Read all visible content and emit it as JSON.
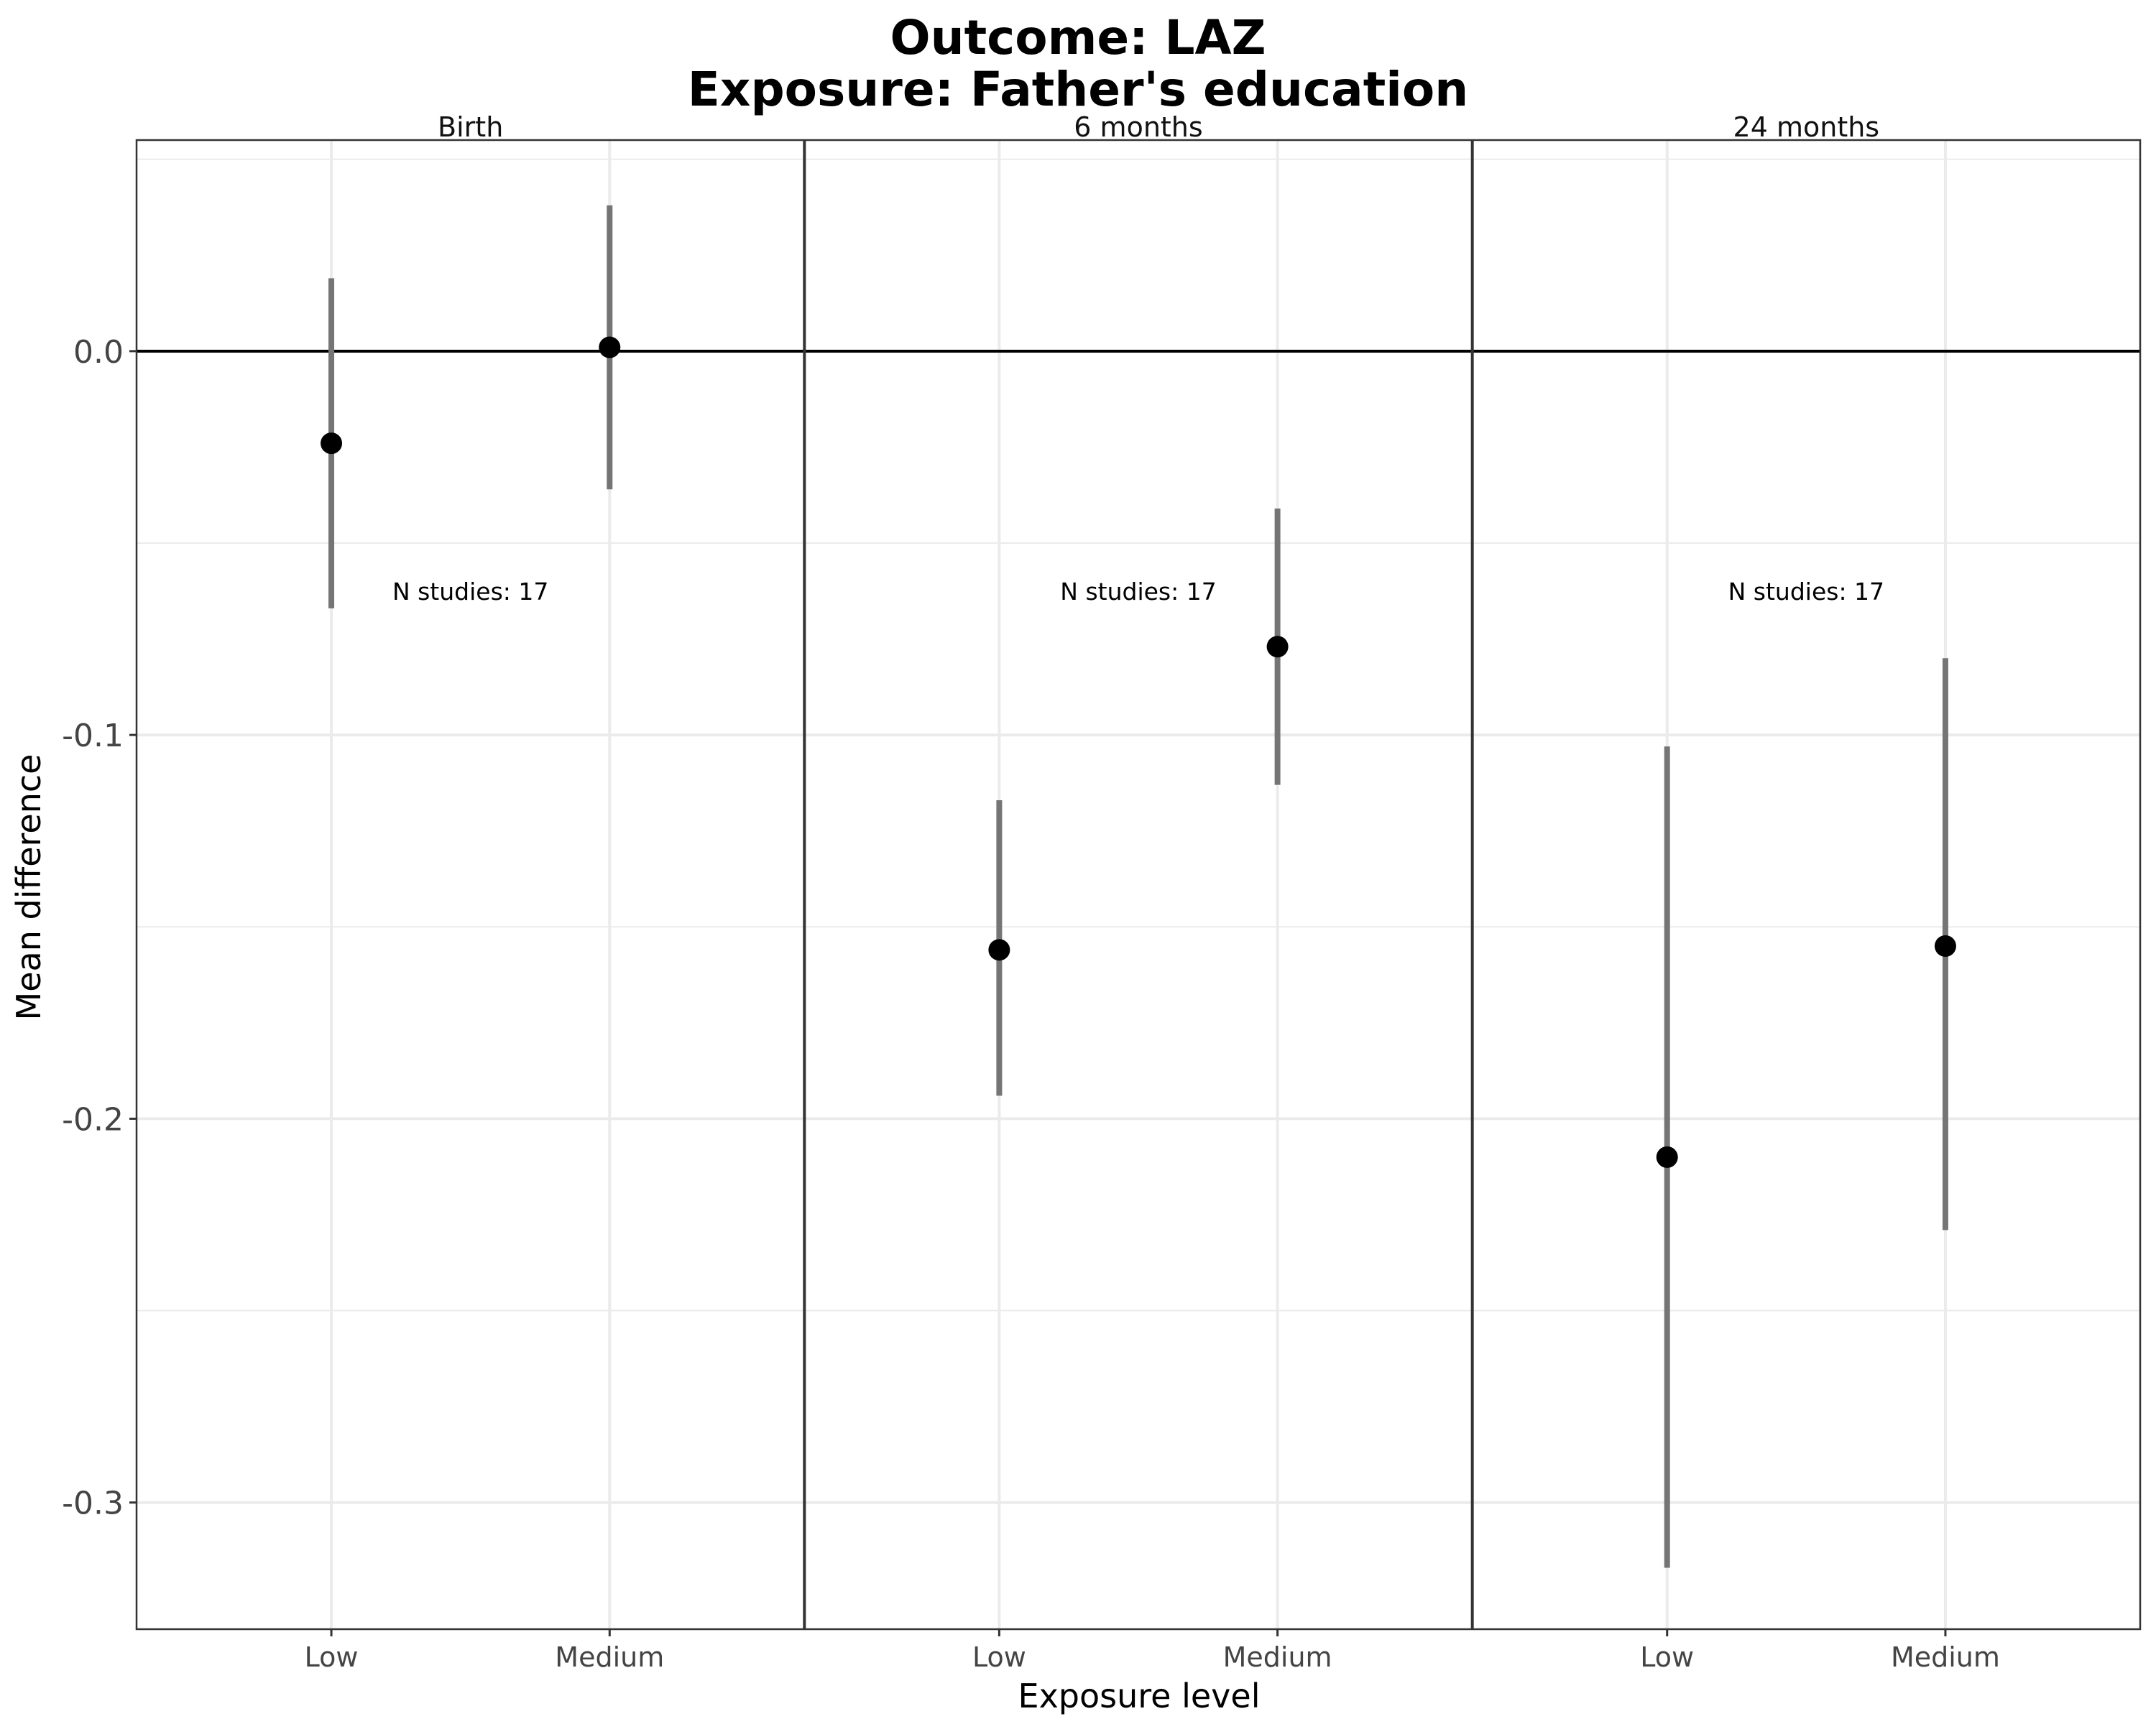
{
  "chart_data": {
    "type": "scatter",
    "subtype": "point-range facets",
    "title": "Outcome: LAZ",
    "subtitle": "Exposure: Father's education",
    "xlabel": "Exposure level",
    "ylabel": "Mean difference",
    "categories": [
      "Low",
      "Medium"
    ],
    "ylim": [
      -0.333,
      0.055
    ],
    "yticks": [
      0.0,
      -0.1,
      -0.2,
      -0.3
    ],
    "ytick_labels": [
      "0.0",
      "-0.1",
      "-0.2",
      "-0.3"
    ],
    "reference_line": 0.0,
    "grid": true,
    "legend": "none",
    "colors": {
      "point": "#000000",
      "interval": "#757575",
      "reference": "#000000",
      "grid": "#ebebeb",
      "border": "#333333"
    },
    "facets": [
      {
        "label": "Birth",
        "annotation": "N studies: 17",
        "points": [
          {
            "category": "Low",
            "value": -0.024,
            "lower": -0.067,
            "upper": 0.019
          },
          {
            "category": "Medium",
            "value": 0.001,
            "lower": -0.036,
            "upper": 0.038
          }
        ]
      },
      {
        "label": "6 months",
        "annotation": "N studies: 17",
        "points": [
          {
            "category": "Low",
            "value": -0.156,
            "lower": -0.194,
            "upper": -0.117
          },
          {
            "category": "Medium",
            "value": -0.077,
            "lower": -0.113,
            "upper": -0.041
          }
        ]
      },
      {
        "label": "24 months",
        "annotation": "N studies: 17",
        "points": [
          {
            "category": "Low",
            "value": -0.21,
            "lower": -0.317,
            "upper": -0.103
          },
          {
            "category": "Medium",
            "value": -0.155,
            "lower": -0.229,
            "upper": -0.08
          }
        ]
      }
    ]
  }
}
